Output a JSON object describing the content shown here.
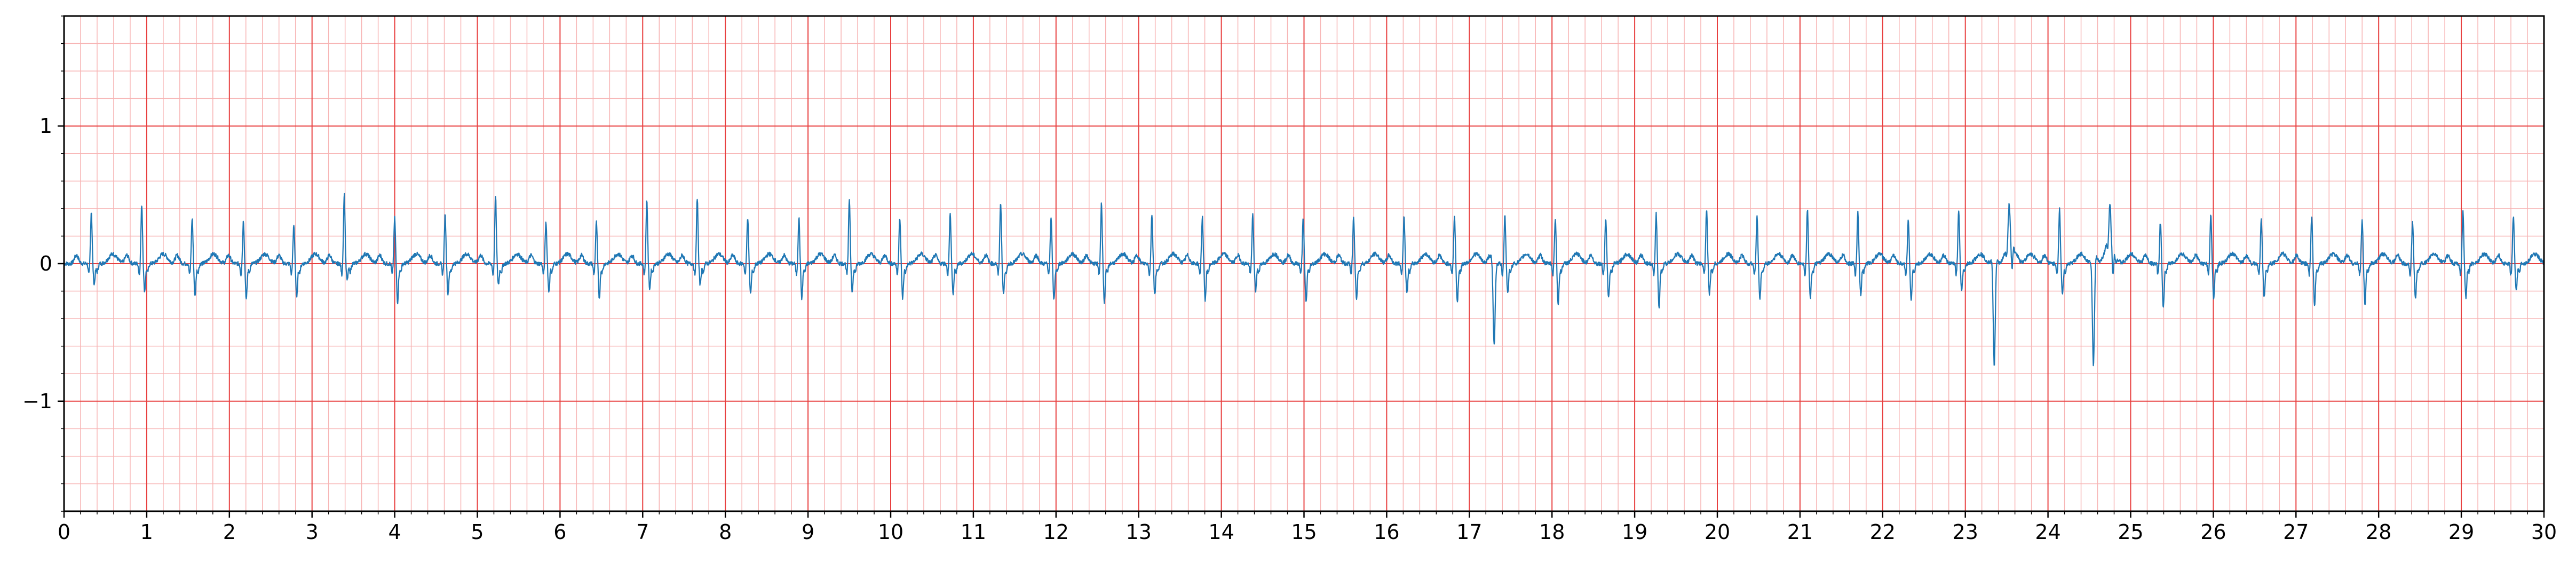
{
  "chart_data": {
    "type": "line",
    "title": "",
    "xlabel": "",
    "ylabel": "",
    "xlim": [
      0,
      30
    ],
    "ylim": [
      -1.8,
      1.8
    ],
    "grid": {
      "major": true,
      "minor": true,
      "major_x_step": 1,
      "major_y_step": 1,
      "minor_x_step": 0.2,
      "minor_y_step": 0.2
    },
    "x_ticks": [
      "0",
      "1",
      "2",
      "3",
      "4",
      "5",
      "6",
      "7",
      "8",
      "9",
      "10",
      "11",
      "12",
      "13",
      "14",
      "15",
      "16",
      "17",
      "18",
      "19",
      "20",
      "21",
      "22",
      "23",
      "24",
      "25",
      "26",
      "27",
      "28",
      "29",
      "30"
    ],
    "y_ticks": [
      {
        "value": 1,
        "label": "1"
      },
      {
        "value": 0,
        "label": "0"
      },
      {
        "value": -1,
        "label": "−1"
      }
    ],
    "colors": {
      "line": "#1f77b4",
      "major_grid": "#e84040",
      "minor_grid": "#f7b4b4",
      "axes": "#000000"
    },
    "series": [
      {
        "beat_times": [
          0.33,
          0.94,
          1.55,
          2.17,
          2.78,
          3.39,
          4.0,
          4.61,
          5.22,
          5.83,
          6.44,
          7.05,
          7.66,
          8.27,
          8.89,
          9.5,
          10.11,
          10.72,
          11.33,
          11.94,
          12.55,
          13.16,
          13.77,
          14.38,
          14.99,
          15.6,
          16.21,
          16.82,
          17.43,
          18.04,
          18.65,
          19.26,
          19.87,
          20.48,
          21.09,
          21.7,
          22.31,
          22.92,
          23.53,
          24.14,
          24.75,
          25.36,
          25.97,
          26.58,
          27.19,
          27.8,
          28.41,
          29.02,
          29.63
        ],
        "r_peaks": [
          0.38,
          0.43,
          0.33,
          0.31,
          0.28,
          0.51,
          0.33,
          0.35,
          0.49,
          0.3,
          0.3,
          0.46,
          0.48,
          0.34,
          0.33,
          0.47,
          0.34,
          0.36,
          0.45,
          0.33,
          0.44,
          0.36,
          0.34,
          0.35,
          0.32,
          0.33,
          0.34,
          0.34,
          0.35,
          0.33,
          0.33,
          0.36,
          0.4,
          0.34,
          0.4,
          0.38,
          0.32,
          0.39,
          0.22,
          0.4,
          0.22,
          0.3,
          0.35,
          0.32,
          0.34,
          0.32,
          0.31,
          0.38,
          0.35
        ],
        "s_troughs": [
          -0.15,
          -0.2,
          -0.24,
          -0.26,
          -0.25,
          -0.12,
          -0.28,
          -0.22,
          -0.15,
          -0.2,
          -0.25,
          -0.18,
          -0.15,
          -0.22,
          -0.25,
          -0.2,
          -0.25,
          -0.22,
          -0.22,
          -0.26,
          -0.28,
          -0.22,
          -0.26,
          -0.2,
          -0.28,
          -0.25,
          -0.22,
          -0.28,
          -0.22,
          -0.3,
          -0.25,
          -0.33,
          -0.22,
          -0.26,
          -0.25,
          -0.22,
          -0.28,
          -0.2,
          -0.25,
          -0.22,
          -0.25,
          -0.33,
          -0.25,
          -0.25,
          -0.3,
          -0.3,
          -0.26,
          -0.25,
          -0.2
        ],
        "ectopic_dips": [
          {
            "x": 17.3,
            "y": -0.6
          },
          {
            "x": 23.35,
            "y": -0.8
          },
          {
            "x": 24.55,
            "y": -0.78
          }
        ],
        "t_wave_bumps": [
          {
            "x": 23.55,
            "y": 0.23
          },
          {
            "x": 24.75,
            "y": 0.22
          }
        ]
      }
    ]
  }
}
